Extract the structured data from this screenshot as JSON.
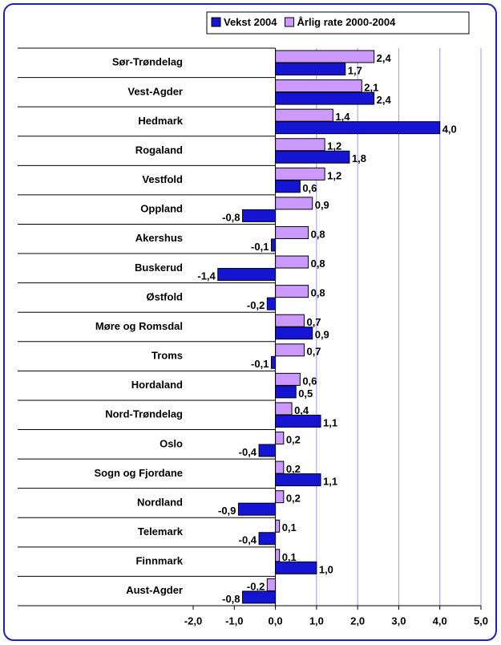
{
  "chart_data": {
    "type": "hbar",
    "categories": [
      "Sør-Trøndelag",
      "Vest-Agder",
      "Hedmark",
      "Rogaland",
      "Vestfold",
      "Oppland",
      "Akershus",
      "Buskerud",
      "Østfold",
      "Møre og Romsdal",
      "Troms",
      "Hordaland",
      "Nord-Trøndelag",
      "Oslo",
      "Sogn og Fjordane",
      "Nordland",
      "Telemark",
      "Finnmark",
      "Aust-Agder"
    ],
    "series": [
      {
        "name": "Vekst 2004",
        "color": "#1414d2",
        "values": [
          1.7,
          2.4,
          4.0,
          1.8,
          0.6,
          -0.8,
          -0.1,
          -1.4,
          -0.2,
          0.9,
          -0.1,
          0.5,
          1.1,
          -0.4,
          1.1,
          -0.9,
          -0.4,
          1.0,
          -0.8
        ],
        "value_labels": [
          "1,7",
          "2,4",
          "4,0",
          "1,8",
          "0,6",
          "-0,8",
          "-0,1",
          "-1,4",
          "-0,2",
          "0,9",
          "-0,1",
          "0,5",
          "1,1",
          "-0,4",
          "1,1",
          "-0,9",
          "-0,4",
          "1,0",
          "-0,8"
        ]
      },
      {
        "name": "Årlig rate 2000-2004",
        "color": "#cc99ff",
        "values": [
          2.4,
          2.1,
          1.4,
          1.2,
          1.2,
          0.9,
          0.8,
          0.8,
          0.8,
          0.7,
          0.7,
          0.6,
          0.4,
          0.2,
          0.2,
          0.2,
          0.1,
          0.1,
          -0.2
        ],
        "value_labels": [
          "2,4",
          "2,1",
          "1,4",
          "1,2",
          "1,2",
          "0,9",
          "0,8",
          "0,8",
          "0,8",
          "0,7",
          "0,7",
          "0,6",
          "0,4",
          "0,2",
          "0,2",
          "0,2",
          "0,1",
          "0,1",
          "-0,2"
        ]
      }
    ],
    "xlim": [
      -2,
      5
    ],
    "xticks": [
      {
        "value": -2,
        "label": "-2,0"
      },
      {
        "value": -1,
        "label": "-1,0"
      },
      {
        "value": 0,
        "label": "0,0"
      },
      {
        "value": 1,
        "label": "1,0"
      },
      {
        "value": 2,
        "label": "2,0"
      },
      {
        "value": 3,
        "label": "3,0"
      },
      {
        "value": 4,
        "label": "4,0"
      },
      {
        "value": 5,
        "label": "5,0"
      }
    ],
    "grid": true,
    "legend": "top-right"
  }
}
